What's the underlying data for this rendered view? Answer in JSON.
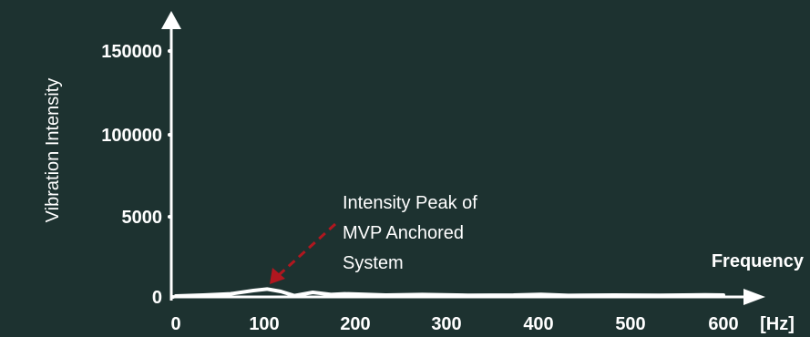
{
  "chart_data": {
    "type": "line",
    "title": "",
    "xlabel": "Frequency",
    "x_unit": "[Hz]",
    "ylabel": "Vibration Intensity",
    "x_ticks": [
      "0",
      "100",
      "200",
      "300",
      "400",
      "500",
      "600"
    ],
    "y_ticks": [
      "0",
      "5000",
      "100000",
      "150000"
    ],
    "xlim": [
      0,
      600
    ],
    "grid": false,
    "series": [
      {
        "color": "#ffffff",
        "x": [
          0,
          30,
          60,
          85,
          100,
          115,
          130,
          150,
          170,
          185,
          200,
          230,
          270,
          320,
          370,
          400,
          430,
          480,
          530,
          580,
          600
        ],
        "y": [
          0,
          0.05,
          0.12,
          0.3,
          0.38,
          0.25,
          0.02,
          0.2,
          0.08,
          0.12,
          0.1,
          0.05,
          0.08,
          0.04,
          0.05,
          0.09,
          0.03,
          0.05,
          0.04,
          0.06,
          0.05
        ]
      }
    ],
    "annotation": {
      "lines": [
        "Intensity Peak of",
        "MVP Anchored",
        "System"
      ],
      "arrow_color": "#b0171f"
    },
    "axis_color": "#ffffff",
    "background": "#1d3230"
  }
}
